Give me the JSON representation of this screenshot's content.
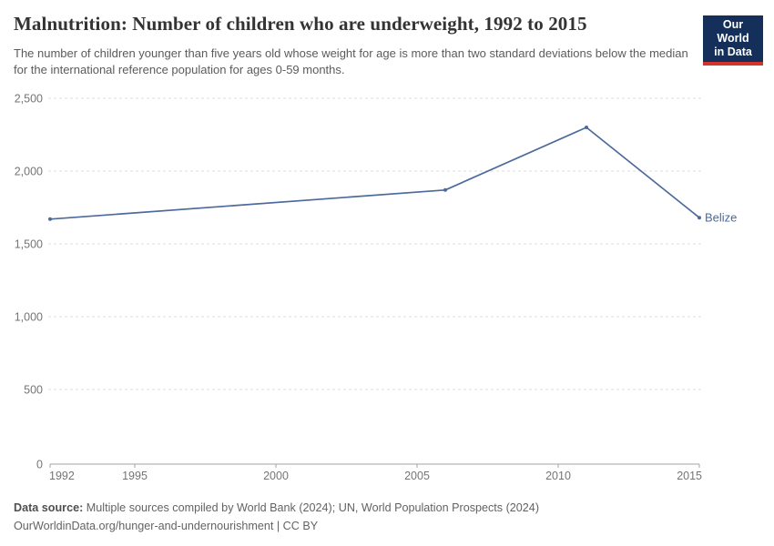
{
  "header": {
    "title": "Malnutrition: Number of children who are underweight, 1992 to 2015",
    "subtitle": "The number of children younger than five years old whose weight for age is more than two standard deviations below the median for the international reference population for ages 0-59 months.",
    "logo": {
      "line1": "Our World",
      "line2": "in Data",
      "bg_color": "#14305a",
      "stripe_color": "#d0342c",
      "text_color": "#ffffff"
    }
  },
  "chart_data": {
    "type": "line",
    "title": "Malnutrition: Number of children who are underweight, 1992 to 2015",
    "xlabel": "",
    "ylabel": "",
    "xlim": [
      1992,
      2015
    ],
    "ylim": [
      0,
      2500
    ],
    "grid": "horizontal-dashed",
    "legend_position": "end-of-line-label",
    "xticks": [
      1992,
      1995,
      2000,
      2005,
      2010,
      2015
    ],
    "xtick_labels": [
      "1992",
      "1995",
      "2000",
      "2005",
      "2010",
      "2015"
    ],
    "yticks": [
      0,
      500,
      1000,
      1500,
      2000,
      2500
    ],
    "ytick_labels": [
      "0",
      "500",
      "1,000",
      "1,500",
      "2,000",
      "2,500"
    ],
    "series": [
      {
        "name": "Belize",
        "color": "#4c6a9c",
        "x": [
          1992,
          2006,
          2011,
          2015
        ],
        "values": [
          1670,
          1870,
          2300,
          1680
        ]
      }
    ]
  },
  "axis_style": {
    "tick_label_color": "#757575",
    "gridline_color": "#dcdcdc",
    "axis_line_color": "#a3a3a3"
  },
  "footer": {
    "source_label": "Data source:",
    "source_text": " Multiple sources compiled by World Bank (2024); UN, World Population Prospects (2024)",
    "link_line": "OurWorldinData.org/hunger-and-undernourishment | CC BY"
  }
}
